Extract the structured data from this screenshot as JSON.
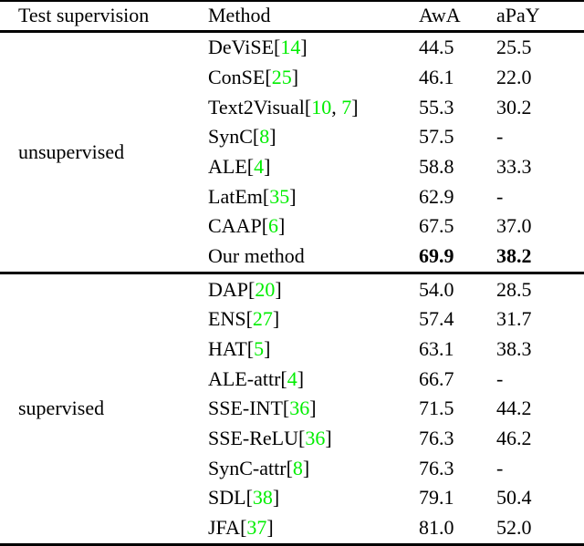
{
  "table": {
    "citation_color": "#00ee00",
    "columns": [
      {
        "label": "Test supervision"
      },
      {
        "label": "Method"
      },
      {
        "label": "AwA"
      },
      {
        "label": "aPaY"
      }
    ],
    "sections": [
      {
        "supervision": "unsupervised",
        "rows": [
          {
            "method": "DeViSE",
            "cites": [
              "14"
            ],
            "awa": "44.5",
            "apay": "25.5",
            "bold": false
          },
          {
            "method": "ConSE",
            "cites": [
              "25"
            ],
            "awa": "46.1",
            "apay": "22.0",
            "bold": false
          },
          {
            "method": "Text2Visual",
            "cites": [
              "10",
              "7"
            ],
            "awa": "55.3",
            "apay": "30.2",
            "bold": false
          },
          {
            "method": "SynC",
            "cites": [
              "8"
            ],
            "awa": "57.5",
            "apay": "-",
            "bold": false
          },
          {
            "method": "ALE",
            "cites": [
              "4"
            ],
            "awa": "58.8",
            "apay": "33.3",
            "bold": false
          },
          {
            "method": "LatEm",
            "cites": [
              "35"
            ],
            "awa": "62.9",
            "apay": "-",
            "bold": false
          },
          {
            "method": "CAAP",
            "cites": [
              "6"
            ],
            "awa": "67.5",
            "apay": "37.0",
            "bold": false
          },
          {
            "method": "Our method",
            "cites": [],
            "awa": "69.9",
            "apay": "38.2",
            "bold": true
          }
        ]
      },
      {
        "supervision": "supervised",
        "rows": [
          {
            "method": "DAP",
            "cites": [
              "20"
            ],
            "awa": "54.0",
            "apay": "28.5",
            "bold": false
          },
          {
            "method": "ENS",
            "cites": [
              "27"
            ],
            "awa": "57.4",
            "apay": "31.7",
            "bold": false
          },
          {
            "method": "HAT",
            "cites": [
              "5"
            ],
            "awa": "63.1",
            "apay": "38.3",
            "bold": false
          },
          {
            "method": "ALE-attr",
            "cites": [
              "4"
            ],
            "awa": "66.7",
            "apay": "-",
            "bold": false
          },
          {
            "method": "SSE-INT",
            "cites": [
              "36"
            ],
            "awa": "71.5",
            "apay": "44.2",
            "bold": false
          },
          {
            "method": "SSE-ReLU",
            "cites": [
              "36"
            ],
            "awa": "76.3",
            "apay": "46.2",
            "bold": false
          },
          {
            "method": "SynC-attr",
            "cites": [
              "8"
            ],
            "awa": "76.3",
            "apay": "-",
            "bold": false
          },
          {
            "method": "SDL",
            "cites": [
              "38"
            ],
            "awa": "79.1",
            "apay": "50.4",
            "bold": false
          },
          {
            "method": "JFA",
            "cites": [
              "37"
            ],
            "awa": "81.0",
            "apay": "52.0",
            "bold": false
          }
        ]
      }
    ]
  }
}
